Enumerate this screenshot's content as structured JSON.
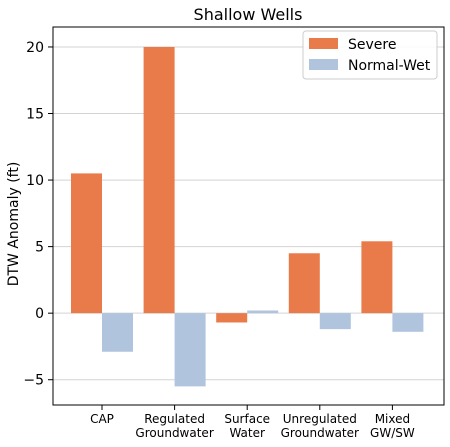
{
  "chart_data": {
    "type": "bar",
    "title": "Shallow Wells",
    "xlabel": "",
    "ylabel": "DTW Anomaly (ft)",
    "categories": [
      [
        "CAP"
      ],
      [
        "Regulated",
        "Groundwater"
      ],
      [
        "Surface",
        "Water"
      ],
      [
        "Unregulated",
        "Groundwater"
      ],
      [
        "Mixed",
        "GW/SW"
      ]
    ],
    "series": [
      {
        "name": "Severe",
        "color": "#e97b4a",
        "values": [
          10.5,
          20.0,
          -0.7,
          4.5,
          5.4
        ]
      },
      {
        "name": "Normal-Wet",
        "color": "#b0c4de",
        "values": [
          -2.9,
          -5.5,
          0.2,
          -1.2,
          -1.4
        ]
      }
    ],
    "ylim": [
      -6.9,
      21.5
    ],
    "yticks": [
      -5,
      0,
      5,
      10,
      15,
      20
    ],
    "ytick_labels": [
      "−5",
      "0",
      "5",
      "10",
      "15",
      "20"
    ],
    "grid": "horizontal",
    "legend_position": "top-right"
  }
}
